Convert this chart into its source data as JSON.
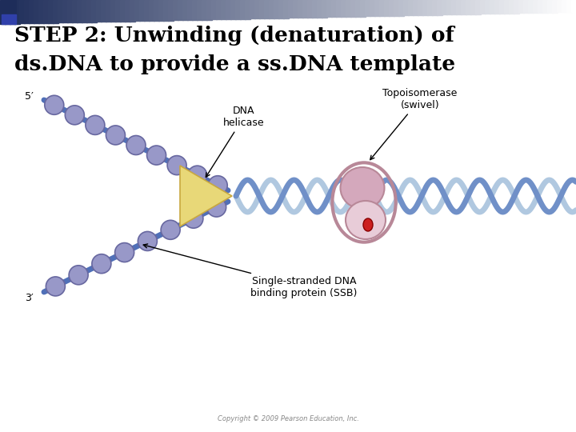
{
  "title_line1": "STEP 2: Unwinding (denaturation) of",
  "title_line2": "ds.DNA to provide a ss.DNA template",
  "title_fontsize": 19,
  "title_fontweight": "bold",
  "bg_color": "#ffffff",
  "label_dna_helicase": "DNA\nhelicase",
  "label_topoisomerase": "Topoisomerase\n(swivel)",
  "label_ssb": "Single-stranded DNA\nbinding protein (SSB)",
  "label_5prime": "5′",
  "label_3prime": "3′",
  "copyright": "Copyright © 2009 Pearson Education, Inc.",
  "helicase_color": "#e8d878",
  "helicase_edge": "#c8a840",
  "strand1_color": "#7090c8",
  "strand2_color": "#b0c8e0",
  "ssdna_ball_color": "#9898c8",
  "ssdna_ball_edge": "#6868a0",
  "blue_strand_color": "#5070b8",
  "topo_outer_color": "#d4a8bc",
  "topo_inner_color": "#e8ccd8",
  "topo_edge_color": "#b88898",
  "topo_red_color": "#cc2020",
  "label_fontsize": 9,
  "prime_fontsize": 9,
  "copyright_fontsize": 6
}
